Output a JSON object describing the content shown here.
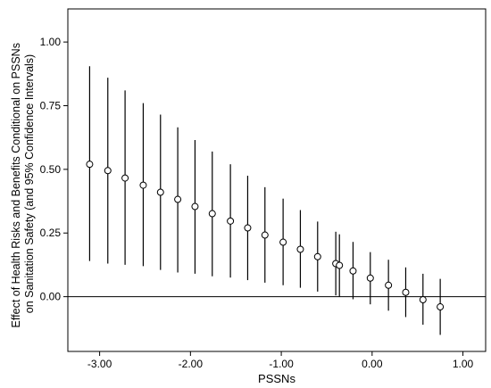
{
  "chart_data": {
    "type": "scatter",
    "title": "",
    "xlabel": "PSSNs",
    "ylabel_lines": [
      "Effect of Health Risks and Benefits Conditional on PSSNs",
      "on Sanitation Safety (and 95% Confidence Intervals)"
    ],
    "xlim": [
      -3.35,
      1.25
    ],
    "ylim": [
      -0.215,
      1.13
    ],
    "x_ticks": [
      -3.0,
      -2.0,
      -1.0,
      0.0,
      1.0
    ],
    "x_tick_labels": [
      "-3.00",
      "-2.00",
      "-1.00",
      "0.00",
      "1.00"
    ],
    "y_ticks": [
      0.0,
      0.25,
      0.5,
      0.75,
      1.0
    ],
    "y_tick_labels": [
      "0.00",
      "0.25",
      "0.50",
      "0.75",
      "1.00"
    ],
    "reference_line_y": 0.0,
    "grid": false,
    "points": [
      {
        "x": -3.11,
        "y": 0.52,
        "lo": 0.14,
        "hi": 0.905
      },
      {
        "x": -2.91,
        "y": 0.495,
        "lo": 0.13,
        "hi": 0.86
      },
      {
        "x": -2.72,
        "y": 0.466,
        "lo": 0.125,
        "hi": 0.81
      },
      {
        "x": -2.52,
        "y": 0.438,
        "lo": 0.12,
        "hi": 0.76
      },
      {
        "x": -2.33,
        "y": 0.41,
        "lo": 0.105,
        "hi": 0.715
      },
      {
        "x": -2.14,
        "y": 0.382,
        "lo": 0.095,
        "hi": 0.665
      },
      {
        "x": -1.95,
        "y": 0.354,
        "lo": 0.09,
        "hi": 0.615
      },
      {
        "x": -1.76,
        "y": 0.326,
        "lo": 0.08,
        "hi": 0.57
      },
      {
        "x": -1.56,
        "y": 0.297,
        "lo": 0.075,
        "hi": 0.52
      },
      {
        "x": -1.37,
        "y": 0.27,
        "lo": 0.065,
        "hi": 0.475
      },
      {
        "x": -1.18,
        "y": 0.242,
        "lo": 0.055,
        "hi": 0.43
      },
      {
        "x": -0.98,
        "y": 0.214,
        "lo": 0.045,
        "hi": 0.385
      },
      {
        "x": -0.79,
        "y": 0.186,
        "lo": 0.035,
        "hi": 0.34
      },
      {
        "x": -0.6,
        "y": 0.157,
        "lo": 0.02,
        "hi": 0.295
      },
      {
        "x": -0.4,
        "y": 0.13,
        "lo": 0.005,
        "hi": 0.255
      },
      {
        "x": -0.36,
        "y": 0.123,
        "lo": 0.0,
        "hi": 0.245
      },
      {
        "x": -0.21,
        "y": 0.101,
        "lo": -0.01,
        "hi": 0.215
      },
      {
        "x": -0.02,
        "y": 0.073,
        "lo": -0.03,
        "hi": 0.175
      },
      {
        "x": 0.18,
        "y": 0.045,
        "lo": -0.055,
        "hi": 0.145
      },
      {
        "x": 0.37,
        "y": 0.017,
        "lo": -0.08,
        "hi": 0.115
      },
      {
        "x": 0.56,
        "y": -0.012,
        "lo": -0.11,
        "hi": 0.09
      },
      {
        "x": 0.75,
        "y": -0.04,
        "lo": -0.15,
        "hi": 0.07
      }
    ]
  }
}
